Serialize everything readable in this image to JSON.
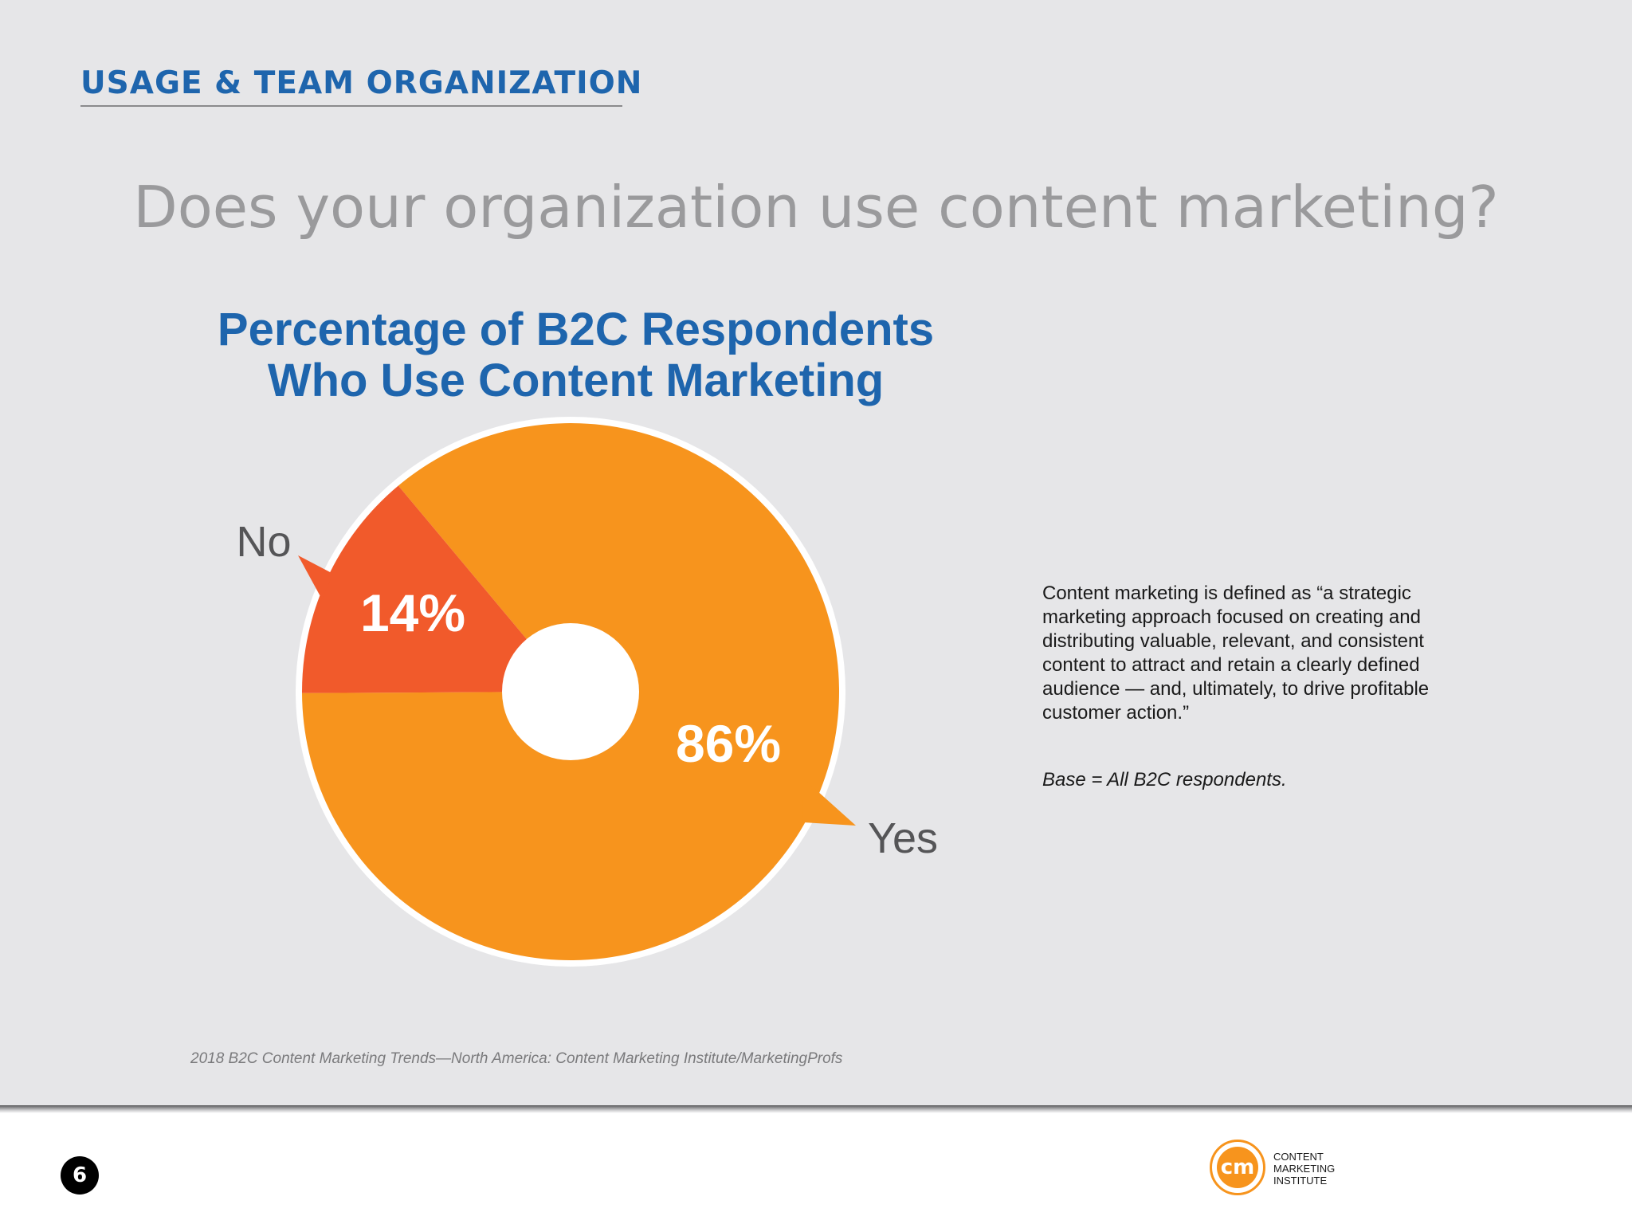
{
  "header": {
    "section_title": "USAGE & TEAM ORGANIZATION",
    "question": "Does your organization use content marketing?"
  },
  "chart_data": {
    "type": "pie",
    "title_lines": [
      "Percentage of B2C Respondents",
      "Who Use Content Marketing"
    ],
    "slices": [
      {
        "label": "No",
        "value": 14,
        "display": "14%",
        "color": "#f15a2b"
      },
      {
        "label": "Yes",
        "value": 86,
        "display": "86%",
        "color": "#f7941d"
      }
    ],
    "donut_hole": true
  },
  "sidebar": {
    "definition": "Content marketing is defined as “a strategic marketing approach focused on creating and distributing valuable, relevant, and consistent content to attract and retain a clearly defined audience — and, ultimately, to drive profitable customer action.”",
    "base_note": "Base = All B2C respondents."
  },
  "footer": {
    "source": "2018 B2C Content Marketing Trends—North America: Content Marketing Institute/MarketingProfs",
    "page_number": "6",
    "logo_mark": "cm",
    "logo_lines": [
      "CONTENT",
      "MARKETING",
      "INSTITUTE"
    ]
  }
}
